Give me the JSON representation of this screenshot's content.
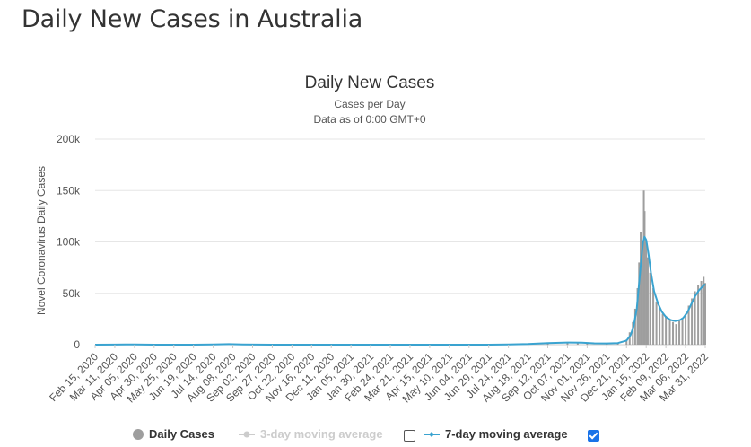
{
  "page": {
    "title": "Daily New Cases in Australia"
  },
  "chart_data": {
    "type": "bar",
    "title": "Daily New Cases",
    "subtitle": "Cases per Day",
    "subtitle2": "Data as of 0:00 GMT+0",
    "ylabel": "Novel Coronavirus Daily Cases",
    "xlabel": "",
    "ylim": [
      0,
      200000
    ],
    "y_ticks": [
      "0",
      "50k",
      "100k",
      "150k",
      "200k"
    ],
    "x_ticks": [
      "Feb 15, 2020",
      "Mar 11, 2020",
      "Apr 05, 2020",
      "Apr 30, 2020",
      "May 25, 2020",
      "Jun 19, 2020",
      "Jul 14, 2020",
      "Aug 08, 2020",
      "Sep 02, 2020",
      "Sep 27, 2020",
      "Oct 22, 2020",
      "Nov 16, 2020",
      "Dec 11, 2020",
      "Jan 05, 2021",
      "Jan 30, 2021",
      "Feb 24, 2021",
      "Mar 21, 2021",
      "Apr 15, 2021",
      "May 10, 2021",
      "Jun 04, 2021",
      "Jun 29, 2021",
      "Jul 24, 2021",
      "Aug 18, 2021",
      "Sep 12, 2021",
      "Oct 07, 2021",
      "Nov 01, 2021",
      "Nov 26, 2021",
      "Dec 21, 2021",
      "Jan 15, 2022",
      "Feb 09, 2022",
      "Mar 06, 2022",
      "Mar 31, 2022"
    ],
    "grid": true,
    "legend_position": "bottom-center",
    "series": [
      {
        "name": "Daily Cases",
        "kind": "bar",
        "color": "#9e9e9e",
        "points": [
          [
            "Feb 15, 2020",
            0
          ],
          [
            "Mar 11, 2020",
            60
          ],
          [
            "Mar 25, 2020",
            350
          ],
          [
            "Apr 05, 2020",
            150
          ],
          [
            "Apr 30, 2020",
            20
          ],
          [
            "May 25, 2020",
            10
          ],
          [
            "Jun 19, 2020",
            20
          ],
          [
            "Jul 14, 2020",
            250
          ],
          [
            "Aug 01, 2020",
            600
          ],
          [
            "Aug 08, 2020",
            450
          ],
          [
            "Sep 02, 2020",
            100
          ],
          [
            "Sep 27, 2020",
            20
          ],
          [
            "Oct 22, 2020",
            15
          ],
          [
            "Dec 11, 2020",
            10
          ],
          [
            "Jan 05, 2021",
            20
          ],
          [
            "Mar 21, 2021",
            10
          ],
          [
            "Jun 29, 2021",
            30
          ],
          [
            "Jul 24, 2021",
            200
          ],
          [
            "Aug 18, 2021",
            700
          ],
          [
            "Sep 12, 2021",
            1800
          ],
          [
            "Oct 07, 2021",
            2200
          ],
          [
            "Oct 20, 2021",
            2000
          ],
          [
            "Nov 01, 2021",
            1500
          ],
          [
            "Nov 26, 2021",
            1300
          ],
          [
            "Dec 10, 2021",
            1700
          ],
          [
            "Dec 21, 2021",
            5000
          ],
          [
            "Dec 25, 2021",
            12000
          ],
          [
            "Dec 29, 2021",
            22000
          ],
          [
            "Jan 01, 2022",
            35000
          ],
          [
            "Jan 04, 2022",
            55000
          ],
          [
            "Jan 06, 2022",
            80000
          ],
          [
            "Jan 08, 2022",
            110000
          ],
          [
            "Jan 10, 2022",
            95000
          ],
          [
            "Jan 12, 2022",
            150000
          ],
          [
            "Jan 13, 2022",
            130000
          ],
          [
            "Jan 15, 2022",
            100000
          ],
          [
            "Jan 17, 2022",
            85000
          ],
          [
            "Jan 20, 2022",
            70000
          ],
          [
            "Jan 24, 2022",
            55000
          ],
          [
            "Jan 28, 2022",
            42000
          ],
          [
            "Feb 01, 2022",
            35000
          ],
          [
            "Feb 05, 2022",
            30000
          ],
          [
            "Feb 09, 2022",
            28000
          ],
          [
            "Feb 14, 2022",
            24000
          ],
          [
            "Feb 18, 2022",
            22000
          ],
          [
            "Feb 22, 2022",
            20000
          ],
          [
            "Feb 26, 2022",
            23000
          ],
          [
            "Mar 02, 2022",
            26000
          ],
          [
            "Mar 06, 2022",
            30000
          ],
          [
            "Mar 10, 2022",
            38000
          ],
          [
            "Mar 14, 2022",
            45000
          ],
          [
            "Mar 18, 2022",
            52000
          ],
          [
            "Mar 22, 2022",
            58000
          ],
          [
            "Mar 26, 2022",
            62000
          ],
          [
            "Mar 29, 2022",
            66000
          ],
          [
            "Mar 31, 2022",
            60000
          ]
        ]
      },
      {
        "name": "3-day moving average",
        "kind": "line",
        "color": "#cccccc",
        "visible": false,
        "checked": false
      },
      {
        "name": "7-day moving average",
        "kind": "line",
        "color": "#3aa3d0",
        "visible": true,
        "checked": true,
        "points": [
          [
            "Feb 15, 2020",
            0
          ],
          [
            "Mar 11, 2020",
            80
          ],
          [
            "Mar 25, 2020",
            300
          ],
          [
            "Apr 05, 2020",
            170
          ],
          [
            "Apr 30, 2020",
            20
          ],
          [
            "Jun 19, 2020",
            20
          ],
          [
            "Jul 14, 2020",
            200
          ],
          [
            "Aug 03, 2020",
            520
          ],
          [
            "Aug 20, 2020",
            250
          ],
          [
            "Sep 27, 2020",
            15
          ],
          [
            "Dec 11, 2020",
            10
          ],
          [
            "Jun 29, 2021",
            30
          ],
          [
            "Jul 24, 2021",
            180
          ],
          [
            "Aug 18, 2021",
            650
          ],
          [
            "Sep 12, 2021",
            1600
          ],
          [
            "Oct 07, 2021",
            2100
          ],
          [
            "Oct 25, 2021",
            1900
          ],
          [
            "Nov 10, 2021",
            1300
          ],
          [
            "Nov 26, 2021",
            1200
          ],
          [
            "Dec 10, 2021",
            1600
          ],
          [
            "Dec 21, 2021",
            4000
          ],
          [
            "Dec 26, 2021",
            9000
          ],
          [
            "Dec 30, 2021",
            18000
          ],
          [
            "Jan 03, 2022",
            35000
          ],
          [
            "Jan 06, 2022",
            60000
          ],
          [
            "Jan 09, 2022",
            85000
          ],
          [
            "Jan 11, 2022",
            100000
          ],
          [
            "Jan 13, 2022",
            105000
          ],
          [
            "Jan 15, 2022",
            102000
          ],
          [
            "Jan 18, 2022",
            88000
          ],
          [
            "Jan 21, 2022",
            70000
          ],
          [
            "Jan 25, 2022",
            52000
          ],
          [
            "Jan 30, 2022",
            40000
          ],
          [
            "Feb 04, 2022",
            32000
          ],
          [
            "Feb 09, 2022",
            27000
          ],
          [
            "Feb 15, 2022",
            24000
          ],
          [
            "Feb 21, 2022",
            23000
          ],
          [
            "Feb 27, 2022",
            24000
          ],
          [
            "Mar 03, 2022",
            26000
          ],
          [
            "Mar 08, 2022",
            31000
          ],
          [
            "Mar 13, 2022",
            39000
          ],
          [
            "Mar 18, 2022",
            47000
          ],
          [
            "Mar 23, 2022",
            53000
          ],
          [
            "Mar 27, 2022",
            56000
          ],
          [
            "Mar 31, 2022",
            59000
          ]
        ]
      }
    ]
  },
  "legend": {
    "daily_cases": "Daily Cases",
    "ma3": "3-day moving average",
    "ma7": "7-day moving average"
  }
}
